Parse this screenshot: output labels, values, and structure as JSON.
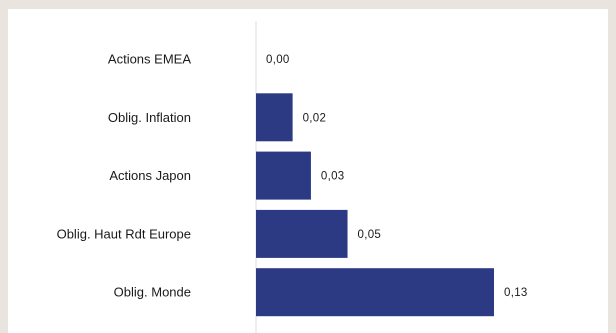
{
  "chart_data": {
    "type": "bar",
    "orientation": "horizontal",
    "categories": [
      "Actions EMEA",
      "Oblig. Inflation",
      "Actions Japon",
      "Oblig. Haut Rdt Europe",
      "Oblig. Monde"
    ],
    "values": [
      0.0,
      0.02,
      0.03,
      0.05,
      0.13
    ],
    "value_labels": [
      "0,00",
      "0,02",
      "0,03",
      "0,05",
      "0,13"
    ],
    "title": "",
    "xlabel": "",
    "ylabel": "",
    "xlim": [
      0,
      0.13
    ],
    "grid": false,
    "legend": "none",
    "bar_color": "#2b3a82",
    "axis_color": "#dcdcdc"
  }
}
